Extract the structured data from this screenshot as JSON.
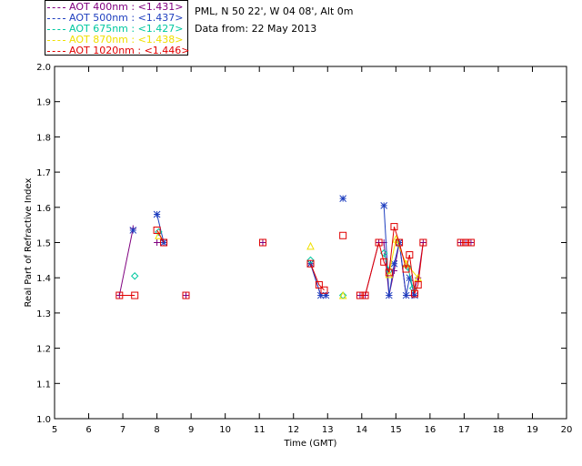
{
  "header": {
    "site": "PML, N 50 22', W 04 08', Alt 0m",
    "date": "Data from: 22 May 2013"
  },
  "legend": [
    {
      "label": "AOT  400nm : <1.431>",
      "color": "#800080"
    },
    {
      "label": "AOT  500nm : <1.437>",
      "color": "#1f3fbf"
    },
    {
      "label": "AOT  675nm : <1.427>",
      "color": "#00c8a0"
    },
    {
      "label": "AOT  870nm : <1.438>",
      "color": "#f0e000"
    },
    {
      "label": "AOT 1020nm : <1.446>",
      "color": "#e00000"
    }
  ],
  "chart_data": {
    "type": "scatter",
    "title": "",
    "xlabel": "Time (GMT)",
    "ylabel": "Real Part of Refractive Index",
    "xlim": [
      5,
      20
    ],
    "ylim": [
      1.0,
      2.0
    ],
    "xticks": [
      "5",
      "6",
      "7",
      "8",
      "9",
      "10",
      "11",
      "12",
      "13",
      "14",
      "15",
      "16",
      "17",
      "18",
      "19",
      "20"
    ],
    "yticks": [
      "1.0",
      "1.1",
      "1.2",
      "1.3",
      "1.4",
      "1.5",
      "1.6",
      "1.7",
      "1.8",
      "1.9",
      "2.0"
    ],
    "grid": false,
    "series": [
      {
        "name": "AOT 400nm",
        "color": "#800080",
        "marker": "plus",
        "points": [
          [
            6.9,
            1.35
          ],
          [
            7.3,
            1.54
          ],
          [
            8.0,
            1.5
          ],
          [
            8.2,
            1.5
          ],
          [
            8.85,
            1.35
          ],
          [
            11.1,
            1.5
          ],
          [
            12.5,
            1.44
          ],
          [
            12.8,
            1.35
          ],
          [
            12.95,
            1.35
          ],
          [
            13.95,
            1.35
          ],
          [
            14.1,
            1.35
          ],
          [
            14.5,
            1.5
          ],
          [
            14.65,
            1.5
          ],
          [
            14.8,
            1.35
          ],
          [
            14.95,
            1.42
          ],
          [
            15.1,
            1.5
          ],
          [
            15.3,
            1.35
          ],
          [
            15.5,
            1.35
          ],
          [
            15.65,
            1.4
          ],
          [
            15.8,
            1.5
          ],
          [
            16.9,
            1.5
          ],
          [
            17.05,
            1.5
          ],
          [
            17.2,
            1.5
          ]
        ]
      },
      {
        "name": "AOT 500nm",
        "color": "#1f3fbf",
        "marker": "star",
        "points": [
          [
            7.3,
            1.535
          ],
          [
            8.0,
            1.58
          ],
          [
            8.2,
            1.5
          ],
          [
            12.5,
            1.44
          ],
          [
            12.8,
            1.35
          ],
          [
            12.95,
            1.35
          ],
          [
            13.45,
            1.625
          ],
          [
            14.65,
            1.605
          ],
          [
            14.8,
            1.35
          ],
          [
            14.95,
            1.44
          ],
          [
            15.1,
            1.5
          ],
          [
            15.3,
            1.35
          ],
          [
            15.4,
            1.4
          ],
          [
            15.55,
            1.35
          ]
        ]
      },
      {
        "name": "AOT 675nm",
        "color": "#00c8a0",
        "marker": "diamond",
        "points": [
          [
            7.35,
            1.405
          ],
          [
            8.05,
            1.53
          ],
          [
            12.5,
            1.45
          ],
          [
            13.45,
            1.35
          ],
          [
            14.65,
            1.47
          ],
          [
            14.8,
            1.42
          ],
          [
            15.35,
            1.43
          ],
          [
            15.5,
            1.37
          ]
        ]
      },
      {
        "name": "AOT 870nm",
        "color": "#f0e000",
        "marker": "triangle",
        "points": [
          [
            8.05,
            1.52
          ],
          [
            12.5,
            1.49
          ],
          [
            13.45,
            1.35
          ],
          [
            14.8,
            1.41
          ],
          [
            15.0,
            1.51
          ],
          [
            15.3,
            1.44
          ],
          [
            15.65,
            1.4
          ]
        ]
      },
      {
        "name": "AOT 1020nm",
        "color": "#e00000",
        "marker": "square",
        "points": [
          [
            6.9,
            1.35
          ],
          [
            7.35,
            1.35
          ],
          [
            8.0,
            1.535
          ],
          [
            8.2,
            1.5
          ],
          [
            8.85,
            1.35
          ],
          [
            11.1,
            1.5
          ],
          [
            12.5,
            1.44
          ],
          [
            12.75,
            1.38
          ],
          [
            12.9,
            1.365
          ],
          [
            13.45,
            1.52
          ],
          [
            13.95,
            1.35
          ],
          [
            14.1,
            1.35
          ],
          [
            14.5,
            1.5
          ],
          [
            14.65,
            1.445
          ],
          [
            14.8,
            1.415
          ],
          [
            14.95,
            1.545
          ],
          [
            15.1,
            1.5
          ],
          [
            15.3,
            1.425
          ],
          [
            15.4,
            1.465
          ],
          [
            15.55,
            1.355
          ],
          [
            15.65,
            1.38
          ],
          [
            15.8,
            1.5
          ],
          [
            16.9,
            1.5
          ],
          [
            17.05,
            1.5
          ],
          [
            17.2,
            1.5
          ]
        ]
      }
    ]
  }
}
